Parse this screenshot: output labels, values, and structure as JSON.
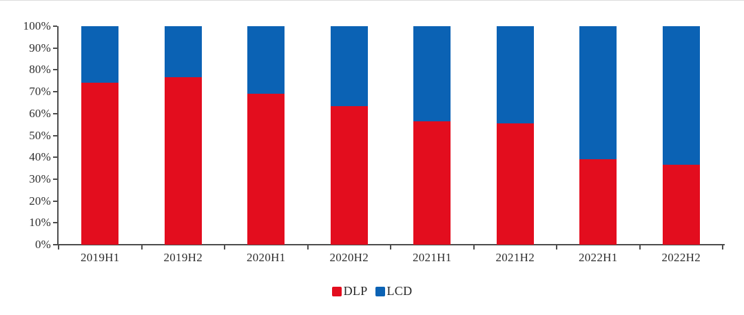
{
  "page": {
    "background": "#ffffff",
    "top_border_color": "#dcdcdc"
  },
  "chart_data": {
    "type": "bar",
    "variant": "stacked-100-percent",
    "title": "",
    "xlabel": "",
    "ylabel": "",
    "categories": [
      "2019H1",
      "2019H2",
      "2020H1",
      "2020H2",
      "2021H1",
      "2021H2",
      "2022H1",
      "2022H2"
    ],
    "series": [
      {
        "name": "DLP",
        "color": "#e30d1e",
        "values": [
          74,
          76.5,
          69,
          63.5,
          56.5,
          55.5,
          39,
          36.5
        ]
      },
      {
        "name": "LCD",
        "color": "#0b62b4",
        "values": [
          26,
          23.5,
          31,
          36.5,
          43.5,
          44.5,
          61,
          63.5
        ]
      }
    ],
    "ylim": [
      0,
      100
    ],
    "y_ticks": [
      "0%",
      "10%",
      "20%",
      "30%",
      "40%",
      "50%",
      "60%",
      "70%",
      "80%",
      "90%",
      "100%"
    ],
    "grid": false,
    "legend_position": "bottom",
    "axis_color": "#4d4d4d",
    "label_color": "#2e2e2e"
  }
}
